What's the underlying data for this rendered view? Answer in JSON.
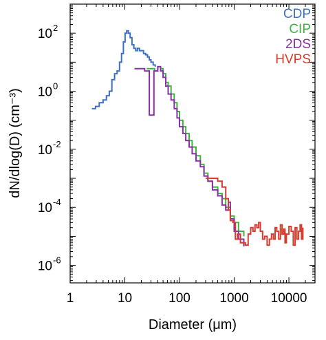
{
  "chart_data": {
    "type": "line",
    "xscale": "log",
    "yscale": "log",
    "xlabel": "Diameter (μm)",
    "ylabel": "dN/dlog(D) (cm⁻³)",
    "xlim": [
      1,
      30000
    ],
    "ylim": [
      2.5e-07,
      1000
    ],
    "x_ticks": [
      {
        "value": 1,
        "label": "1"
      },
      {
        "value": 10,
        "label": "10"
      },
      {
        "value": 100,
        "label": "100"
      },
      {
        "value": 1000,
        "label": "1000"
      },
      {
        "value": 10000,
        "label": "10000"
      }
    ],
    "y_ticks": [
      {
        "value": 100,
        "base": "10",
        "exp": "2"
      },
      {
        "value": 1,
        "base": "10",
        "exp": "0"
      },
      {
        "value": 0.01,
        "base": "10",
        "exp": "-2"
      },
      {
        "value": 0.0001,
        "base": "10",
        "exp": "-4"
      },
      {
        "value": 1e-06,
        "base": "10",
        "exp": "-6"
      }
    ],
    "legend_position": "top-right",
    "grid": false,
    "series": [
      {
        "name": "CDP",
        "color": "#3a6fc4",
        "points": [
          [
            2.5,
            0.25
          ],
          [
            2.9,
            0.3
          ],
          [
            3.4,
            0.4
          ],
          [
            4.0,
            0.5
          ],
          [
            4.6,
            0.7
          ],
          [
            5.2,
            1.0
          ],
          [
            5.8,
            2.5
          ],
          [
            6.5,
            4
          ],
          [
            7.2,
            5
          ],
          [
            8.0,
            10
          ],
          [
            8.7,
            20
          ],
          [
            9.4,
            50
          ],
          [
            10.1,
            100
          ],
          [
            10.8,
            120
          ],
          [
            11.6,
            100
          ],
          [
            12.5,
            70
          ],
          [
            13.5,
            40
          ],
          [
            14.6,
            30
          ],
          [
            15.8,
            25
          ],
          [
            17.0,
            30
          ],
          [
            18.5,
            25
          ],
          [
            20.0,
            25
          ],
          [
            22.0,
            20
          ],
          [
            24.0,
            18
          ],
          [
            26.0,
            15
          ],
          [
            28.0,
            12
          ],
          [
            30.0,
            10
          ],
          [
            33.0,
            8
          ],
          [
            36.0,
            7
          ]
        ]
      },
      {
        "name": "CIP",
        "color": "#3fb33f",
        "points": [
          [
            25,
            6
          ],
          [
            30,
            6
          ],
          [
            35,
            5
          ],
          [
            40,
            7
          ],
          [
            45,
            6
          ],
          [
            50,
            4
          ],
          [
            56,
            2
          ],
          [
            62,
            1.5
          ],
          [
            70,
            0.8
          ],
          [
            80,
            0.4
          ],
          [
            90,
            0.2
          ],
          [
            100,
            0.1
          ],
          [
            115,
            0.06
          ],
          [
            130,
            0.035
          ],
          [
            150,
            0.02
          ],
          [
            170,
            0.012
          ],
          [
            200,
            0.006
          ],
          [
            240,
            0.003
          ],
          [
            280,
            0.0015
          ],
          [
            330,
            0.0008
          ],
          [
            400,
            0.0005
          ],
          [
            500,
            0.0003
          ],
          [
            600,
            0.0002
          ],
          [
            700,
            0.0001
          ],
          [
            850,
            5e-05
          ],
          [
            1000,
            3e-05
          ],
          [
            1200,
            1.5e-05
          ],
          [
            1500,
            1e-05
          ]
        ]
      },
      {
        "name": "2DS",
        "color": "#8a2fa8",
        "points": [
          [
            15,
            6
          ],
          [
            20,
            6
          ],
          [
            23,
            5
          ],
          [
            26,
            5
          ],
          [
            28,
            0.15
          ],
          [
            34,
            0.15
          ],
          [
            34,
            5
          ],
          [
            40,
            7
          ],
          [
            45,
            5
          ],
          [
            50,
            3
          ],
          [
            56,
            1.5
          ],
          [
            62,
            0.8
          ],
          [
            70,
            0.5
          ],
          [
            80,
            0.25
          ],
          [
            90,
            0.12
          ],
          [
            100,
            0.06
          ],
          [
            115,
            0.035
          ],
          [
            130,
            0.02
          ],
          [
            150,
            0.012
          ],
          [
            170,
            0.007
          ],
          [
            200,
            0.004
          ],
          [
            240,
            0.0025
          ],
          [
            280,
            0.0012
          ],
          [
            330,
            0.0008
          ],
          [
            400,
            0.0004
          ],
          [
            500,
            0.00025
          ],
          [
            600,
            0.00012
          ],
          [
            700,
            8e-05
          ],
          [
            780,
            0.00015
          ],
          [
            850,
            4e-05
          ],
          [
            1000,
            1.5e-05
          ],
          [
            1200,
            8e-06
          ],
          [
            1500,
            4.5e-06
          ]
        ]
      },
      {
        "name": "HVPS",
        "color": "#d93a2b",
        "points": [
          [
            300,
            0.001
          ],
          [
            400,
            0.001
          ],
          [
            500,
            0.0008
          ],
          [
            600,
            0.0005
          ],
          [
            700,
            0.0002
          ],
          [
            780,
            8e-05
          ],
          [
            850,
            3.5e-05
          ],
          [
            950,
            3e-05
          ],
          [
            1050,
            8e-06
          ],
          [
            1150,
            1.2e-05
          ],
          [
            1300,
            6e-06
          ],
          [
            1450,
            6e-06
          ],
          [
            1600,
            5e-06
          ],
          [
            1800,
            1.2e-05
          ],
          [
            2000,
            2e-05
          ],
          [
            2200,
            1.5e-05
          ],
          [
            2400,
            2.5e-05
          ],
          [
            2600,
            2e-05
          ],
          [
            2800,
            3e-05
          ],
          [
            3000,
            1.5e-05
          ],
          [
            3300,
            8e-06
          ],
          [
            3600,
            1e-05
          ],
          [
            4000,
            5e-06
          ],
          [
            4400,
            8e-06
          ],
          [
            4800,
            1.2e-05
          ],
          [
            5200,
            8e-06
          ],
          [
            5600,
            2e-05
          ],
          [
            6000,
            1.5e-05
          ],
          [
            6500,
            8e-06
          ],
          [
            7000,
            2.5e-05
          ],
          [
            7500,
            1.2e-05
          ],
          [
            8000,
            1.8e-05
          ],
          [
            8500,
            6e-06
          ],
          [
            9000,
            1.2e-05
          ],
          [
            10000,
            2.2e-05
          ],
          [
            11000,
            1.5e-05
          ],
          [
            12000,
            5e-06
          ],
          [
            13000,
            2e-05
          ],
          [
            14000,
            8e-06
          ],
          [
            15000,
            1.5e-05
          ],
          [
            16000,
            2.5e-05
          ],
          [
            17000,
            8e-06
          ],
          [
            18000,
            2e-05
          ]
        ]
      }
    ]
  }
}
